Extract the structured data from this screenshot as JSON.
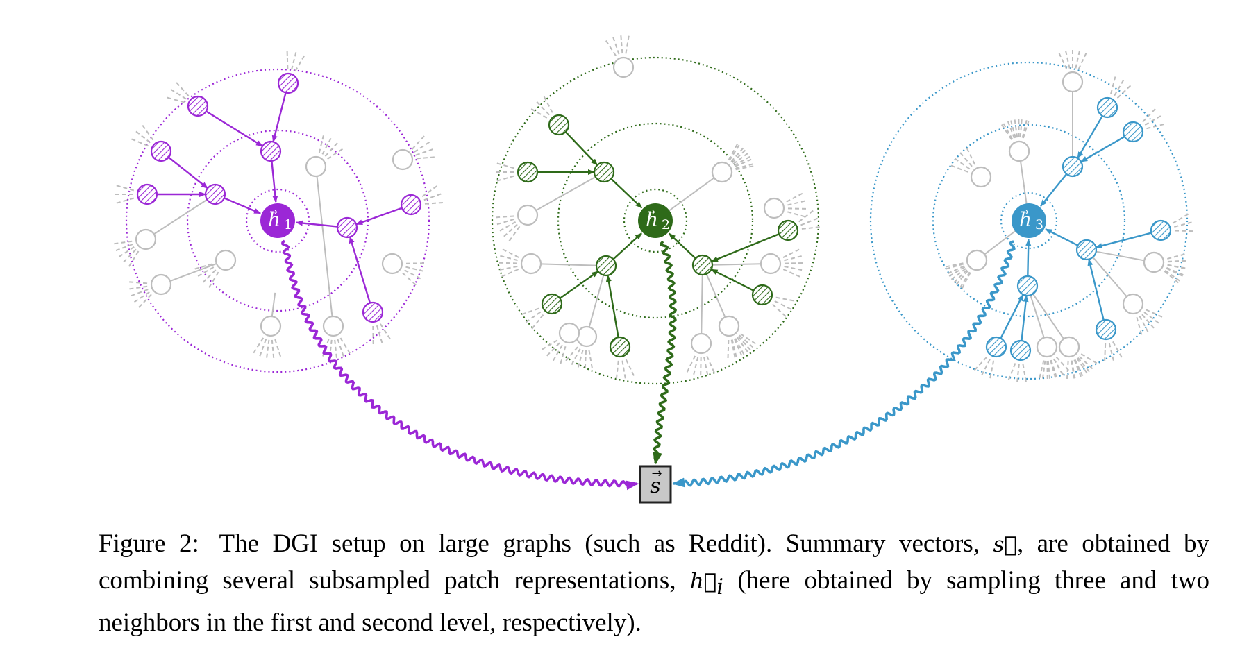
{
  "figure": {
    "clusters": [
      {
        "id": "h1",
        "label": "h",
        "subscript": "1",
        "color": "#9b27d6"
      },
      {
        "id": "h2",
        "label": "h",
        "subscript": "2",
        "color": "#2e6a19"
      },
      {
        "id": "h3",
        "label": "h",
        "subscript": "3",
        "color": "#3a97c9"
      }
    ],
    "summary": {
      "label": "s",
      "fill": "#c8c8c8"
    },
    "gray": "#bdbdbd"
  },
  "caption": {
    "figure_label": "Figure 2:",
    "text_1": "The DGI setup on large graphs (such as Reddit). Summary vectors,",
    "s_symbol": "s⃗",
    "text_2": ", are obtained by combining several subsampled patch representations,",
    "h_symbol": "h⃗",
    "h_sub": "i",
    "text_3": "(here obtained by sampling three and two neighbors in the first and second level, respectively)."
  }
}
